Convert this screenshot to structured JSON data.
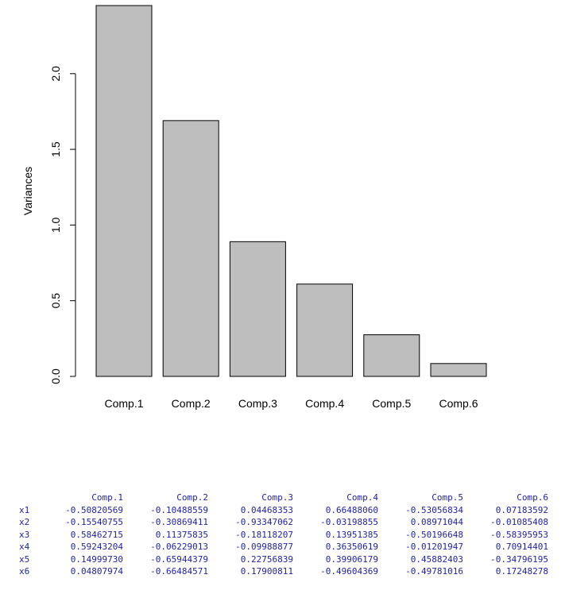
{
  "chart_data": {
    "type": "bar",
    "categories": [
      "Comp.1",
      "Comp.2",
      "Comp.3",
      "Comp.4",
      "Comp.5",
      "Comp.6"
    ],
    "values": [
      2.45,
      1.69,
      0.89,
      0.61,
      0.275,
      0.085
    ],
    "title": "",
    "xlabel": "",
    "ylabel": "Variances",
    "ylim": [
      0,
      2.45
    ],
    "yticks": [
      "0.0",
      "0.5",
      "1.0",
      "1.5",
      "2.0"
    ],
    "ytick_values": [
      0,
      0.5,
      1.0,
      1.5,
      2.0
    ],
    "bar_color": "#bebebe",
    "grid": false
  },
  "loadings": {
    "columns": [
      "Comp.1",
      "Comp.2",
      "Comp.3",
      "Comp.4",
      "Comp.5",
      "Comp.6"
    ],
    "rows": [
      {
        "name": "x1",
        "values": [
          "-0.50820569",
          "-0.10488559",
          "0.04468353",
          "0.66488060",
          "-0.53056834",
          "0.07183592"
        ]
      },
      {
        "name": "x2",
        "values": [
          "-0.15540755",
          "-0.30869411",
          "-0.93347062",
          "-0.03198855",
          "0.08971044",
          "-0.01085408"
        ]
      },
      {
        "name": "x3",
        "values": [
          "0.58462715",
          "0.11375835",
          "-0.18118207",
          "0.13951385",
          "-0.50196648",
          "-0.58395953"
        ]
      },
      {
        "name": "x4",
        "values": [
          "0.59243204",
          "-0.06229013",
          "-0.09988877",
          "0.36350619",
          "-0.01201947",
          "0.70914401"
        ]
      },
      {
        "name": "x5",
        "values": [
          "0.14999730",
          "-0.65944379",
          "0.22756839",
          "0.39906179",
          "0.45882403",
          "-0.34796195"
        ]
      },
      {
        "name": "x6",
        "values": [
          "0.04807974",
          "-0.66484571",
          "0.17900811",
          "-0.49604369",
          "-0.49781016",
          "0.17248278"
        ]
      }
    ],
    "text_color": "#1f1fa8"
  }
}
